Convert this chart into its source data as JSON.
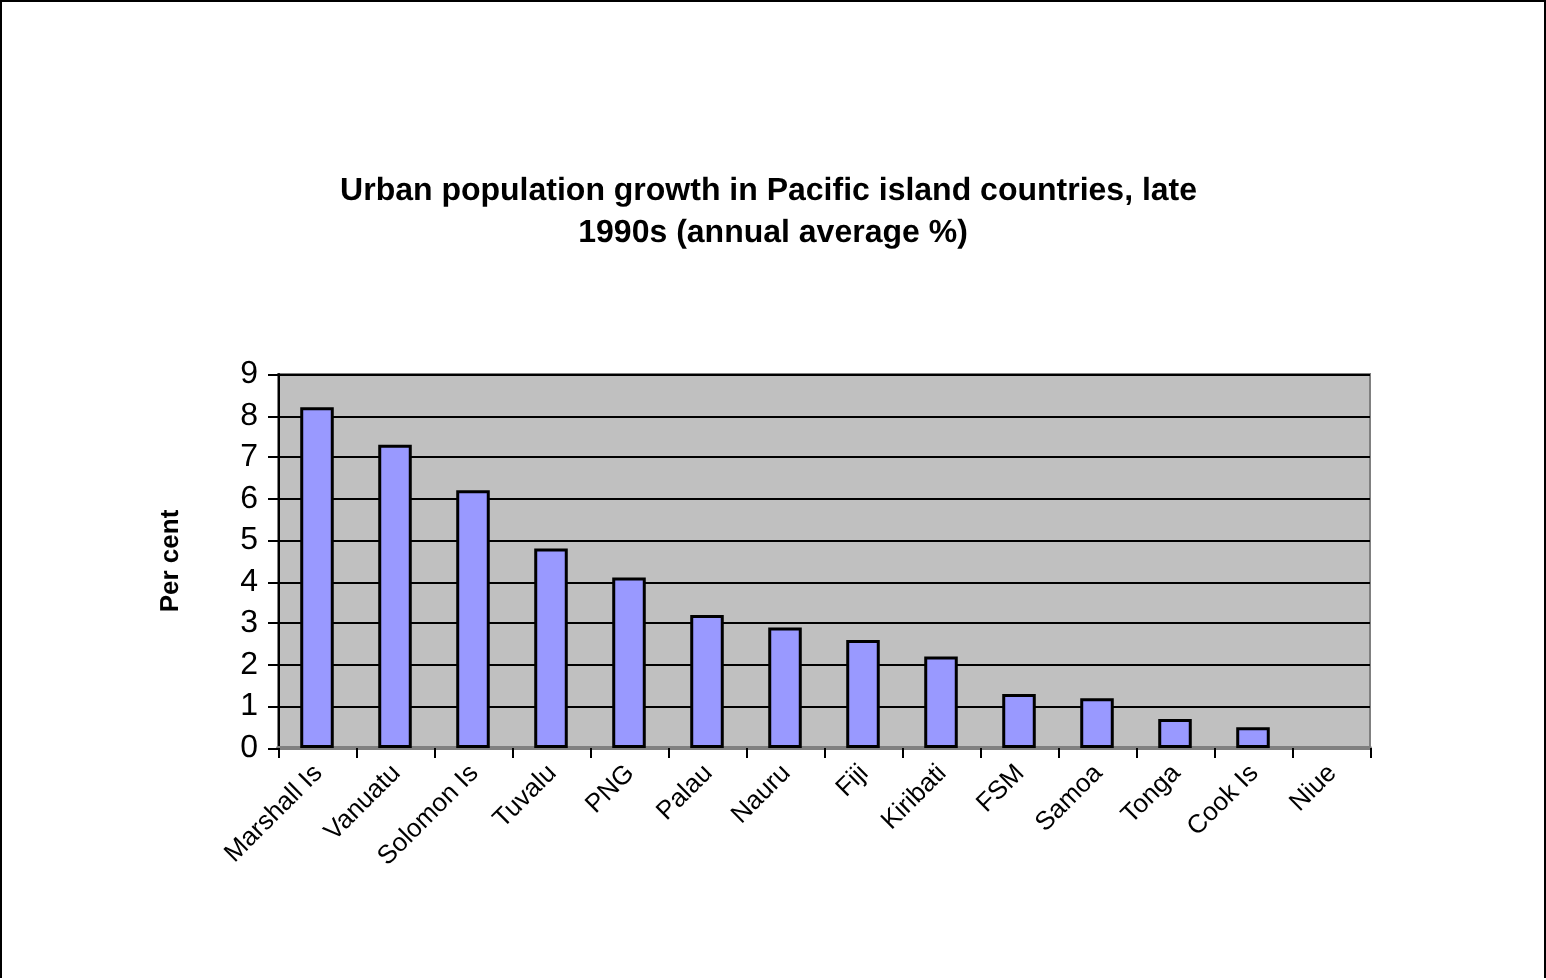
{
  "chart_data": {
    "type": "bar",
    "title": "Urban population growth in Pacific island countries, late 1990s (annual average %)",
    "ylabel": "Per cent",
    "categories": [
      "Marshall Is",
      "Vanuatu",
      "Solomon Is",
      "Tuvalu",
      "PNG",
      "Palau",
      "Nauru",
      "Fiji",
      "Kiribati",
      "FSM",
      "Samoa",
      "Tonga",
      "Cook Is",
      "Niue"
    ],
    "values": [
      8.2,
      7.3,
      6.2,
      4.8,
      4.1,
      3.2,
      2.9,
      2.6,
      2.2,
      1.3,
      1.2,
      0.7,
      0.5,
      null
    ],
    "color": "#9999ff",
    "ylim": [
      0,
      9
    ],
    "yticks": [
      0,
      1,
      2,
      3,
      4,
      5,
      6,
      7,
      8,
      9
    ],
    "grid": "y"
  }
}
